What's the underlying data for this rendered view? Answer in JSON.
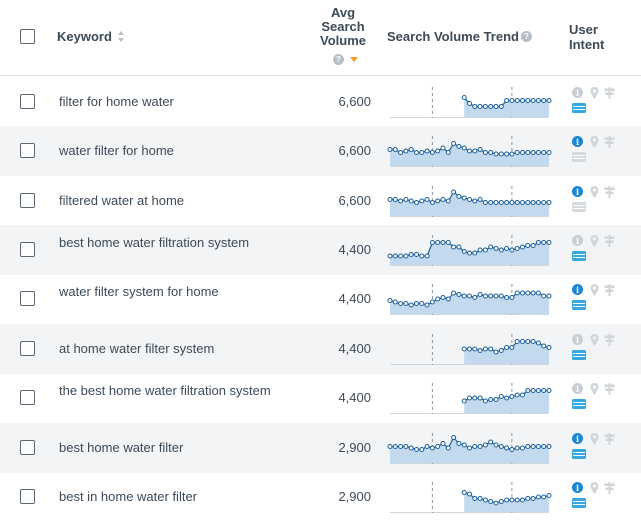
{
  "colors": {
    "accent_blue": "#1a7ac4",
    "info_active": "#1a87d0",
    "info_inactive": "#c8ced4",
    "card_active": "#36a8e0",
    "card_inactive": "#d5dade",
    "sort_active": "#f59d1c",
    "trend_fill": "#c3d9ee",
    "trend_line": "#1b5f9c"
  },
  "header": {
    "select_all_checked": false,
    "keyword_label": "Keyword",
    "avg_label_1": "Avg",
    "avg_label_2": "Search",
    "avg_label_3": "Volume",
    "help_glyph": "?",
    "trend_label": "Search Volume Trend",
    "intent_label_1": "User",
    "intent_label_2": "Intent"
  },
  "rows": [
    {
      "keyword": "filter for home water",
      "volume": "6,600",
      "trend": [
        null,
        null,
        null,
        null,
        null,
        null,
        null,
        null,
        null,
        null,
        null,
        null,
        null,
        null,
        0.65,
        0.45,
        0.35,
        0.35,
        0.35,
        0.35,
        0.35,
        0.35,
        0.55,
        0.55,
        0.55,
        0.55,
        0.55,
        0.55,
        0.55,
        0.55,
        0.55
      ],
      "info_active": false,
      "card_active": true
    },
    {
      "keyword": "water filter for home",
      "volume": "6,600",
      "trend": [
        0.55,
        0.55,
        0.45,
        0.5,
        0.55,
        0.45,
        0.45,
        0.5,
        0.45,
        0.5,
        0.6,
        0.45,
        0.75,
        0.65,
        0.6,
        0.5,
        0.5,
        0.55,
        0.45,
        0.45,
        0.4,
        0.4,
        0.4,
        0.4,
        0.45,
        0.45,
        0.45,
        0.45,
        0.45,
        0.45,
        0.45
      ],
      "info_active": true,
      "card_active": false
    },
    {
      "keyword": "filtered water at home",
      "volume": "6,600",
      "trend": [
        0.55,
        0.55,
        0.5,
        0.55,
        0.5,
        0.45,
        0.5,
        0.55,
        0.45,
        0.5,
        0.55,
        0.5,
        0.8,
        0.65,
        0.6,
        0.55,
        0.5,
        0.55,
        0.45,
        0.45,
        0.45,
        0.45,
        0.45,
        0.45,
        0.45,
        0.45,
        0.45,
        0.45,
        0.45,
        0.45,
        0.45
      ],
      "info_active": true,
      "card_active": false
    },
    {
      "keyword": "best home water filtration system",
      "volume": "4,400",
      "trend": [
        0.3,
        0.3,
        0.3,
        0.3,
        0.35,
        0.35,
        0.3,
        0.3,
        0.75,
        0.75,
        0.75,
        0.75,
        0.6,
        0.6,
        0.45,
        0.4,
        0.4,
        0.5,
        0.5,
        0.6,
        0.55,
        0.5,
        0.55,
        0.5,
        0.55,
        0.6,
        0.65,
        0.65,
        0.75,
        0.75,
        0.75
      ],
      "info_active": false,
      "card_active": true
    },
    {
      "keyword": "water filter system for home",
      "volume": "4,400",
      "trend": [
        0.45,
        0.4,
        0.35,
        0.35,
        0.3,
        0.35,
        0.35,
        0.3,
        0.4,
        0.5,
        0.55,
        0.5,
        0.7,
        0.65,
        0.6,
        0.6,
        0.55,
        0.65,
        0.6,
        0.6,
        0.6,
        0.6,
        0.55,
        0.55,
        0.7,
        0.7,
        0.7,
        0.7,
        0.7,
        0.6,
        0.6
      ],
      "info_active": true,
      "card_active": true
    },
    {
      "keyword": "at home water filter system",
      "volume": "4,400",
      "trend": [
        null,
        null,
        null,
        null,
        null,
        null,
        null,
        null,
        null,
        null,
        null,
        null,
        null,
        null,
        0.5,
        0.5,
        0.5,
        0.45,
        0.5,
        0.5,
        0.4,
        0.45,
        0.55,
        0.55,
        0.75,
        0.75,
        0.75,
        0.75,
        0.7,
        0.6,
        0.55
      ],
      "info_active": false,
      "card_active": true
    },
    {
      "keyword": "the best home water filtration system",
      "volume": "4,400",
      "trend": [
        null,
        null,
        null,
        null,
        null,
        null,
        null,
        null,
        null,
        null,
        null,
        null,
        null,
        null,
        0.4,
        0.5,
        0.5,
        0.5,
        0.4,
        0.45,
        0.45,
        0.55,
        0.5,
        0.55,
        0.6,
        0.6,
        0.75,
        0.75,
        0.75,
        0.75,
        0.75
      ],
      "info_active": false,
      "card_active": true
    },
    {
      "keyword": "best home water filter",
      "volume": "2,900",
      "trend": [
        0.55,
        0.55,
        0.55,
        0.55,
        0.5,
        0.45,
        0.45,
        0.55,
        0.5,
        0.55,
        0.65,
        0.5,
        0.85,
        0.65,
        0.6,
        0.5,
        0.55,
        0.55,
        0.6,
        0.7,
        0.6,
        0.55,
        0.5,
        0.45,
        0.5,
        0.5,
        0.55,
        0.55,
        0.55,
        0.55,
        0.55
      ],
      "info_active": true,
      "card_active": true
    },
    {
      "keyword": "best in home water filter",
      "volume": "2,900",
      "trend": [
        null,
        null,
        null,
        null,
        null,
        null,
        null,
        null,
        null,
        null,
        null,
        null,
        null,
        null,
        0.65,
        0.6,
        0.45,
        0.45,
        0.4,
        0.35,
        0.3,
        0.35,
        0.4,
        0.4,
        0.4,
        0.4,
        0.45,
        0.45,
        0.5,
        0.5,
        0.55
      ],
      "info_active": true,
      "card_active": true
    }
  ]
}
